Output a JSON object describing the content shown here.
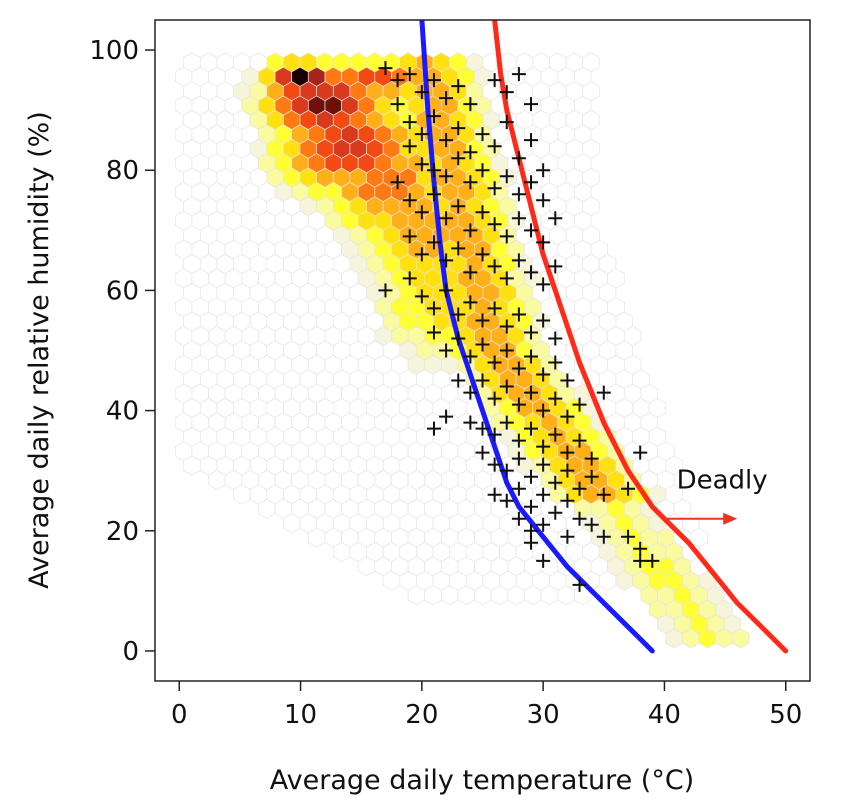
{
  "chart_data": {
    "type": "scatter",
    "title": "",
    "xlabel": "Average daily temperature (°C)",
    "ylabel": "Average daily relative humidity (%)",
    "xlim": [
      -2,
      52
    ],
    "ylim": [
      -5,
      105
    ],
    "x_ticks": [
      "0",
      "10",
      "20",
      "30",
      "40",
      "50"
    ],
    "y_ticks": [
      "0",
      "20",
      "40",
      "60",
      "80",
      "100"
    ],
    "grid": false,
    "legend": "none",
    "annotation": {
      "text": "Deadly",
      "x": 41,
      "y": 27,
      "arrow_from": [
        40,
        22
      ],
      "arrow_to": [
        46,
        22
      ],
      "color": "#ee3322"
    },
    "series": [
      {
        "type": "line",
        "color": "#1a1aff",
        "points": [
          [
            20,
            105
          ],
          [
            20.5,
            90
          ],
          [
            21,
            78
          ],
          [
            21.5,
            68
          ],
          [
            22,
            60
          ],
          [
            23,
            52
          ],
          [
            24,
            46
          ],
          [
            25,
            40
          ],
          [
            26,
            34
          ],
          [
            27,
            28
          ],
          [
            28,
            24
          ],
          [
            30,
            19
          ],
          [
            32,
            14
          ],
          [
            34,
            10
          ],
          [
            36,
            6
          ],
          [
            38,
            2
          ],
          [
            39,
            0
          ]
        ]
      },
      {
        "type": "line",
        "color": "#ff2a1a",
        "points": [
          [
            26,
            105
          ],
          [
            26.5,
            96
          ],
          [
            27,
            90
          ],
          [
            28,
            82
          ],
          [
            29,
            74
          ],
          [
            30,
            66
          ],
          [
            31,
            60
          ],
          [
            32,
            54
          ],
          [
            33,
            48
          ],
          [
            34,
            43
          ],
          [
            35,
            38
          ],
          [
            36,
            34
          ],
          [
            37,
            30
          ],
          [
            38,
            27
          ],
          [
            39,
            24
          ],
          [
            40,
            22
          ],
          [
            42,
            18
          ],
          [
            44,
            13
          ],
          [
            46,
            8
          ],
          [
            48,
            4
          ],
          [
            50,
            0
          ]
        ]
      },
      {
        "type": "scatter",
        "marker": "+",
        "color": "#111111",
        "points": [
          [
            17,
            97
          ],
          [
            18,
            95
          ],
          [
            19,
            96
          ],
          [
            20,
            93
          ],
          [
            21,
            95
          ],
          [
            22,
            92
          ],
          [
            23,
            94
          ],
          [
            24,
            91
          ],
          [
            26,
            95
          ],
          [
            27,
            93
          ],
          [
            28,
            96
          ],
          [
            29,
            91
          ],
          [
            18,
            91
          ],
          [
            19,
            88
          ],
          [
            20,
            86
          ],
          [
            21,
            89
          ],
          [
            22,
            85
          ],
          [
            23,
            87
          ],
          [
            24,
            83
          ],
          [
            25,
            86
          ],
          [
            26,
            84
          ],
          [
            27,
            88
          ],
          [
            28,
            82
          ],
          [
            29,
            85
          ],
          [
            30,
            80
          ],
          [
            19,
            84
          ],
          [
            20,
            81
          ],
          [
            21,
            80
          ],
          [
            22,
            79
          ],
          [
            23,
            82
          ],
          [
            24,
            78
          ],
          [
            25,
            80
          ],
          [
            26,
            77
          ],
          [
            27,
            79
          ],
          [
            28,
            76
          ],
          [
            29,
            78
          ],
          [
            30,
            75
          ],
          [
            18,
            78
          ],
          [
            19,
            75
          ],
          [
            20,
            73
          ],
          [
            21,
            76
          ],
          [
            22,
            72
          ],
          [
            23,
            74
          ],
          [
            24,
            70
          ],
          [
            25,
            73
          ],
          [
            26,
            71
          ],
          [
            27,
            69
          ],
          [
            28,
            72
          ],
          [
            29,
            70
          ],
          [
            30,
            68
          ],
          [
            31,
            72
          ],
          [
            19,
            69
          ],
          [
            20,
            66
          ],
          [
            21,
            68
          ],
          [
            22,
            65
          ],
          [
            23,
            67
          ],
          [
            24,
            63
          ],
          [
            25,
            66
          ],
          [
            26,
            64
          ],
          [
            27,
            62
          ],
          [
            28,
            65
          ],
          [
            29,
            63
          ],
          [
            30,
            61
          ],
          [
            31,
            64
          ],
          [
            17,
            60
          ],
          [
            19,
            62
          ],
          [
            20,
            59
          ],
          [
            21,
            57
          ],
          [
            22,
            60
          ],
          [
            23,
            56
          ],
          [
            24,
            58
          ],
          [
            25,
            55
          ],
          [
            26,
            57
          ],
          [
            27,
            54
          ],
          [
            28,
            56
          ],
          [
            29,
            53
          ],
          [
            30,
            55
          ],
          [
            31,
            52
          ],
          [
            21,
            53
          ],
          [
            22,
            50
          ],
          [
            23,
            52
          ],
          [
            24,
            49
          ],
          [
            25,
            51
          ],
          [
            26,
            48
          ],
          [
            27,
            50
          ],
          [
            28,
            47
          ],
          [
            29,
            49
          ],
          [
            30,
            46
          ],
          [
            31,
            48
          ],
          [
            32,
            45
          ],
          [
            23,
            45
          ],
          [
            24,
            43
          ],
          [
            25,
            45
          ],
          [
            26,
            42
          ],
          [
            27,
            44
          ],
          [
            28,
            41
          ],
          [
            29,
            43
          ],
          [
            30,
            40
          ],
          [
            31,
            42
          ],
          [
            32,
            39
          ],
          [
            33,
            41
          ],
          [
            35,
            43
          ],
          [
            22,
            39
          ],
          [
            24,
            38
          ],
          [
            25,
            37
          ],
          [
            26,
            36
          ],
          [
            27,
            38
          ],
          [
            28,
            35
          ],
          [
            29,
            37
          ],
          [
            30,
            34
          ],
          [
            31,
            36
          ],
          [
            32,
            33
          ],
          [
            33,
            35
          ],
          [
            34,
            32
          ],
          [
            21,
            37
          ],
          [
            25,
            33
          ],
          [
            26,
            31
          ],
          [
            27,
            30
          ],
          [
            28,
            32
          ],
          [
            29,
            29
          ],
          [
            30,
            31
          ],
          [
            31,
            28
          ],
          [
            32,
            30
          ],
          [
            33,
            27
          ],
          [
            34,
            29
          ],
          [
            38,
            33
          ],
          [
            26,
            26
          ],
          [
            27,
            25
          ],
          [
            28,
            27
          ],
          [
            29,
            24
          ],
          [
            30,
            26
          ],
          [
            31,
            23
          ],
          [
            32,
            25
          ],
          [
            33,
            22
          ],
          [
            35,
            26
          ],
          [
            37,
            27
          ],
          [
            28,
            22
          ],
          [
            29,
            20
          ],
          [
            30,
            21
          ],
          [
            32,
            19
          ],
          [
            34,
            21
          ],
          [
            35,
            19
          ],
          [
            37,
            19
          ],
          [
            29,
            18
          ],
          [
            30,
            15
          ],
          [
            33,
            11
          ],
          [
            38,
            17
          ],
          [
            38,
            15
          ],
          [
            39,
            15
          ]
        ]
      }
    ]
  }
}
